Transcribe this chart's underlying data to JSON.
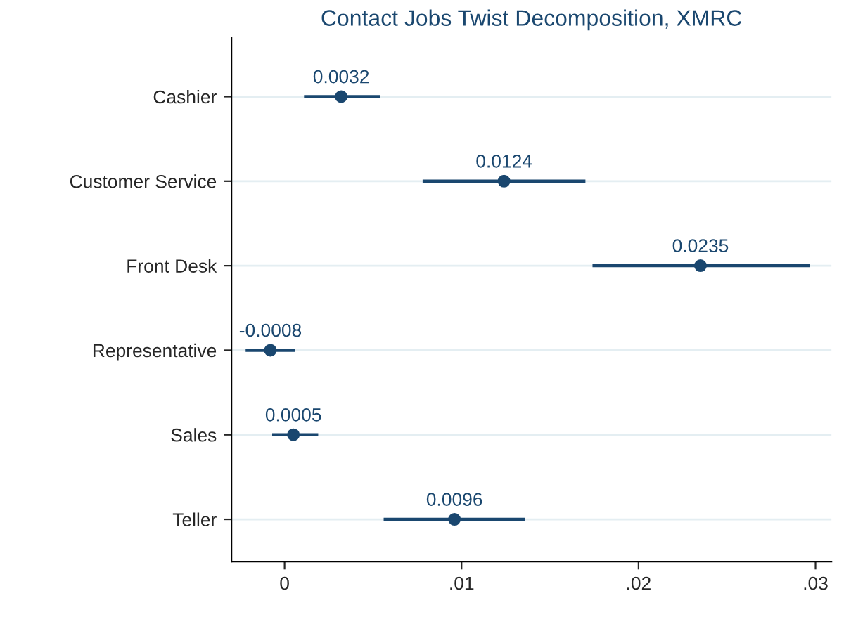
{
  "chart_data": {
    "type": "scatter",
    "orientation": "horizontal",
    "title": "Contact Jobs Twist Decomposition, XMRC",
    "categories": [
      "Cashier",
      "Customer Service",
      "Front Desk",
      "Representative",
      "Sales",
      "Teller"
    ],
    "values": [
      0.0032,
      0.0124,
      0.0235,
      -0.0008,
      0.0005,
      0.0096
    ],
    "errors": [
      [
        0.0011,
        0.0054
      ],
      [
        0.0078,
        0.017
      ],
      [
        0.0174,
        0.0297
      ],
      [
        -0.0022,
        0.0006
      ],
      [
        -0.0007,
        0.0019
      ],
      [
        0.0056,
        0.0136
      ]
    ],
    "color": "#1a476f",
    "data_labels": true,
    "grid": "y",
    "marker": "circle",
    "xlim": [
      -0.003,
      0.0309
    ],
    "xticks": [
      0,
      {
        "value": 0.01,
        "label": ".01"
      },
      {
        "value": 0.02,
        "label": ".02"
      },
      {
        "value": 0.03,
        "label": ".03"
      }
    ]
  }
}
